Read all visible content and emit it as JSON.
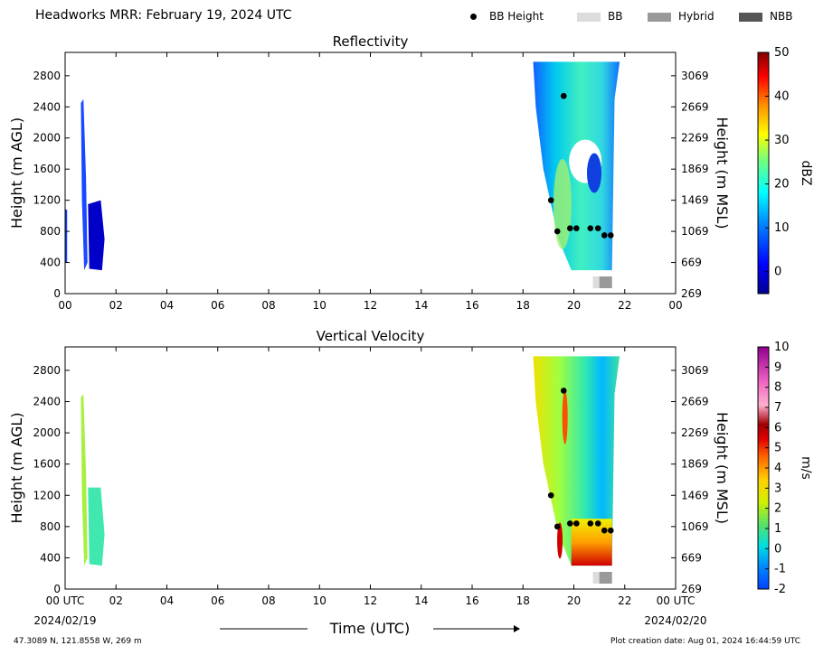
{
  "header": {
    "title": "Headworks MRR:  February 19, 2024 UTC",
    "legend": [
      {
        "label": "BB Height",
        "kind": "dot",
        "color": "#000000"
      },
      {
        "label": "BB",
        "kind": "swatch",
        "color": "#dcdcdc"
      },
      {
        "label": "Hybrid",
        "kind": "swatch",
        "color": "#999999"
      },
      {
        "label": "NBB",
        "kind": "swatch",
        "color": "#555555"
      }
    ]
  },
  "chart_data": [
    {
      "type": "heatmap",
      "title": "Reflectivity",
      "ylabel": "Height (m AGL)",
      "ylabel_right": "Height (m MSL)",
      "colorbar_label": "dBZ",
      "colorbar_ticks": [
        "50",
        "40",
        "30",
        "20",
        "10",
        "0"
      ],
      "colorbar_range": [
        -5,
        50
      ],
      "x_ticks": [
        "00",
        "02",
        "04",
        "06",
        "08",
        "10",
        "12",
        "14",
        "16",
        "18",
        "20",
        "22",
        "00"
      ],
      "xlim_hours": [
        0,
        24
      ],
      "y_ticks": [
        "0",
        "400",
        "800",
        "1200",
        "1600",
        "2000",
        "2400",
        "2800"
      ],
      "y_ticks_right": [
        "269",
        "669",
        "1069",
        "1469",
        "1869",
        "2269",
        "2669",
        "3069"
      ],
      "ylim": [
        0,
        3100
      ],
      "bb_height_points": [
        {
          "x": 19.1,
          "y": 1200
        },
        {
          "x": 19.35,
          "y": 800
        },
        {
          "x": 19.6,
          "y": 2540
        },
        {
          "x": 19.85,
          "y": 840
        },
        {
          "x": 20.1,
          "y": 840
        },
        {
          "x": 20.65,
          "y": 840
        },
        {
          "x": 20.95,
          "y": 840
        },
        {
          "x": 21.2,
          "y": 750
        },
        {
          "x": 21.45,
          "y": 750
        }
      ],
      "bb_type_segments": [
        {
          "type": "BB",
          "start": 20.75,
          "end": 21.0
        },
        {
          "type": "Hybrid",
          "start": 21.0,
          "end": 21.5
        }
      ]
    },
    {
      "type": "heatmap",
      "title": "Vertical Velocity",
      "ylabel": "Height (m AGL)",
      "ylabel_right": "Height (m MSL)",
      "colorbar_label": "m/s",
      "colorbar_ticks": [
        "10",
        "9",
        "8",
        "7",
        "6",
        "5",
        "4",
        "3",
        "2",
        "1",
        "0",
        "-1",
        "-2"
      ],
      "colorbar_range": [
        -2,
        10
      ],
      "x_ticks": [
        "00 UTC",
        "02",
        "04",
        "06",
        "08",
        "10",
        "12",
        "14",
        "16",
        "18",
        "20",
        "22",
        "00 UTC"
      ],
      "xlim_hours": [
        0,
        24
      ],
      "x_date_left": "2024/02/19",
      "x_date_right": "2024/02/20",
      "xlabel": "Time (UTC)",
      "y_ticks": [
        "0",
        "400",
        "800",
        "1200",
        "1600",
        "2000",
        "2400",
        "2800"
      ],
      "y_ticks_right": [
        "269",
        "669",
        "1069",
        "1469",
        "1869",
        "2269",
        "2669",
        "3069"
      ],
      "ylim": [
        0,
        3100
      ],
      "bb_height_points": [
        {
          "x": 19.1,
          "y": 1200
        },
        {
          "x": 19.35,
          "y": 800
        },
        {
          "x": 19.6,
          "y": 2540
        },
        {
          "x": 19.85,
          "y": 840
        },
        {
          "x": 20.1,
          "y": 840
        },
        {
          "x": 20.65,
          "y": 840
        },
        {
          "x": 20.95,
          "y": 840
        },
        {
          "x": 21.2,
          "y": 750
        },
        {
          "x": 21.45,
          "y": 750
        }
      ],
      "bb_type_segments": [
        {
          "type": "BB",
          "start": 20.75,
          "end": 21.0
        },
        {
          "type": "Hybrid",
          "start": 21.0,
          "end": 21.5
        }
      ]
    }
  ],
  "footer": {
    "location": "47.3089 N, 121.8558 W, 269 m",
    "created": "Plot creation date: Aug 01, 2024 16:44:59 UTC"
  }
}
